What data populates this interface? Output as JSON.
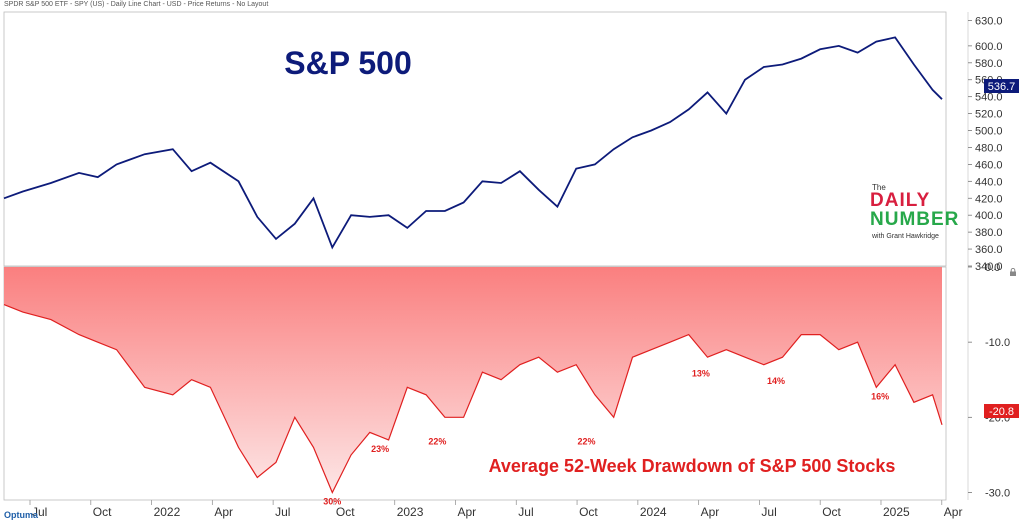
{
  "header": {
    "text": "SPDR S&P 500 ETF - SPY (US) - Daily Line Chart - USD - Price Returns - No Layout"
  },
  "logo": {
    "the": "The",
    "daily": "DAILY",
    "number": "NUMBER",
    "byline": "with Grant Hawkridge"
  },
  "footer": {
    "brand": "Optuma"
  },
  "colors": {
    "price_line": "#0d1b7a",
    "drawdown_line": "#e02020",
    "drawdown_fill_top": "#fa7f7f",
    "drawdown_fill_bottom": "#fde6e6",
    "title_top": "#0d1b7a",
    "title_bottom": "#e02020"
  },
  "chart_data": [
    {
      "type": "line",
      "title": "S&P 500",
      "ylim": [
        340,
        640
      ],
      "y_ticks": [
        "340.0",
        "360.0",
        "380.0",
        "400.0",
        "420.0",
        "440.0",
        "460.0",
        "480.0",
        "500.0",
        "520.0",
        "540.0",
        "560.0",
        "580.0",
        "600.0",
        "630.0"
      ],
      "last_value_label": "536.7",
      "x": [
        0.0,
        0.02,
        0.05,
        0.08,
        0.1,
        0.12,
        0.15,
        0.18,
        0.2,
        0.22,
        0.25,
        0.27,
        0.29,
        0.31,
        0.33,
        0.35,
        0.37,
        0.39,
        0.41,
        0.43,
        0.45,
        0.47,
        0.49,
        0.51,
        0.53,
        0.55,
        0.57,
        0.59,
        0.61,
        0.63,
        0.65,
        0.67,
        0.69,
        0.71,
        0.73,
        0.75,
        0.77,
        0.79,
        0.81,
        0.83,
        0.85,
        0.87,
        0.89,
        0.91,
        0.93,
        0.95,
        0.97,
        0.99,
        1.0
      ],
      "series": [
        {
          "values": [
            420,
            428,
            438,
            450,
            445,
            460,
            472,
            478,
            452,
            462,
            440,
            398,
            372,
            390,
            420,
            362,
            400,
            398,
            400,
            385,
            405,
            405,
            415,
            440,
            438,
            452,
            430,
            410,
            455,
            460,
            478,
            492,
            500,
            510,
            525,
            545,
            520,
            560,
            575,
            578,
            585,
            596,
            600,
            592,
            605,
            610,
            578,
            548,
            537
          ]
        }
      ]
    },
    {
      "type": "area",
      "title": "Average 52-Week Drawdown of S&P 500 Stocks",
      "ylim": [
        -31,
        0
      ],
      "y_ticks": [
        "0.0",
        "-10.0",
        "-20.0",
        "-30.0"
      ],
      "last_value_label": "-20.8",
      "x_tick_labels": [
        "Jul",
        "Oct",
        "2022",
        "Apr",
        "Jul",
        "Oct",
        "2023",
        "Apr",
        "Jul",
        "Oct",
        "2024",
        "Apr",
        "Jul",
        "Oct",
        "2025",
        "Apr"
      ],
      "x": [
        0.0,
        0.02,
        0.05,
        0.08,
        0.1,
        0.12,
        0.15,
        0.18,
        0.2,
        0.22,
        0.25,
        0.27,
        0.29,
        0.31,
        0.33,
        0.35,
        0.37,
        0.39,
        0.41,
        0.43,
        0.45,
        0.47,
        0.49,
        0.51,
        0.53,
        0.55,
        0.57,
        0.59,
        0.61,
        0.63,
        0.65,
        0.67,
        0.69,
        0.71,
        0.73,
        0.75,
        0.77,
        0.79,
        0.81,
        0.83,
        0.85,
        0.87,
        0.89,
        0.91,
        0.93,
        0.95,
        0.97,
        0.99,
        1.0
      ],
      "series": [
        {
          "values": [
            -5,
            -6,
            -7,
            -9,
            -10,
            -11,
            -16,
            -17,
            -15,
            -16,
            -24,
            -28,
            -26,
            -20,
            -24,
            -30,
            -25,
            -22,
            -23,
            -16,
            -17,
            -20,
            -20,
            -14,
            -15,
            -13,
            -12,
            -14,
            -13,
            -17,
            -20,
            -12,
            -11,
            -10,
            -9,
            -12,
            -11,
            -12,
            -13,
            -12,
            -9,
            -9,
            -11,
            -10,
            -16,
            -13,
            -18,
            -17,
            -21
          ]
        }
      ],
      "annotations": [
        {
          "x": 0.35,
          "y": -30,
          "text": "30%"
        },
        {
          "x": 0.401,
          "y": -23,
          "text": "23%"
        },
        {
          "x": 0.462,
          "y": -22,
          "text": "22%"
        },
        {
          "x": 0.621,
          "y": -22,
          "text": "22%"
        },
        {
          "x": 0.743,
          "y": -13,
          "text": "13%"
        },
        {
          "x": 0.823,
          "y": -14,
          "text": "14%"
        },
        {
          "x": 0.934,
          "y": -16,
          "text": "16%"
        }
      ]
    }
  ]
}
